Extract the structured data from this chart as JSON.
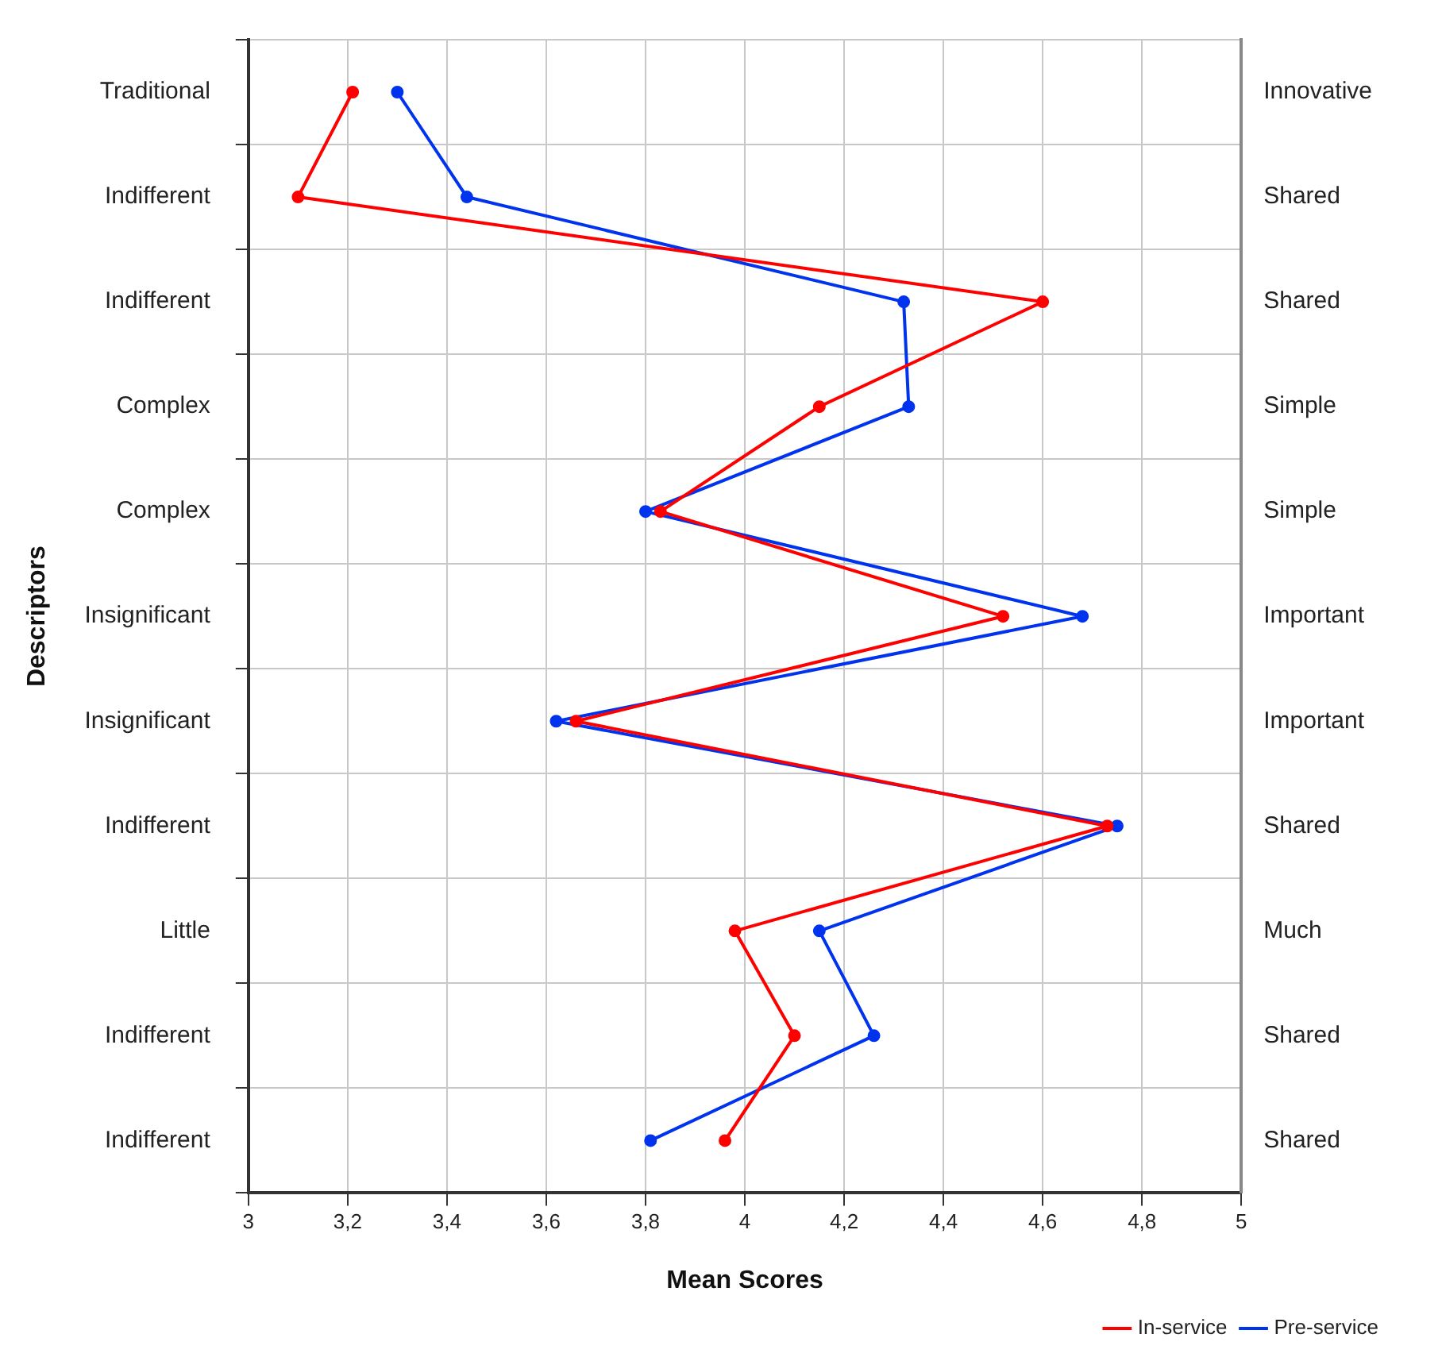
{
  "chart_data": {
    "type": "line",
    "orientation": "horizontal",
    "xlabel": "Mean Scores",
    "ylabel": "Descriptors",
    "categories": [
      "Traditional",
      "Indifferent",
      "Indifferent",
      "Complex",
      "Complex",
      "Insignificant",
      "Insignificant",
      "Indifferent",
      "Little",
      "Indifferent",
      "Indifferent"
    ],
    "y2_categories": [
      "Innovative",
      "Shared",
      "Shared",
      "Simple",
      "Simple",
      "Important",
      "Important",
      "Shared",
      "Much",
      "Shared",
      "Shared"
    ],
    "series": [
      {
        "name": "In-service",
        "color": "#ff0000",
        "values": [
          3.21,
          3.1,
          4.6,
          4.15,
          3.83,
          4.52,
          3.66,
          4.73,
          3.98,
          4.1,
          3.96
        ]
      },
      {
        "name": "Pre-service",
        "color": "#0033ee",
        "values": [
          3.3,
          3.44,
          4.32,
          4.33,
          3.8,
          4.68,
          3.62,
          4.75,
          4.15,
          4.26,
          3.81
        ]
      }
    ],
    "xlim": [
      3,
      5
    ],
    "xticks": [
      3,
      {
        "value": 3.2,
        "label": "3,2"
      },
      {
        "value": 3.4,
        "label": "3,4"
      },
      {
        "value": 3.6,
        "label": "3,6"
      },
      {
        "value": 3.8,
        "label": "3,8"
      },
      4,
      {
        "value": 4.2,
        "label": "4,2"
      },
      {
        "value": 4.4,
        "label": "4,4"
      },
      {
        "value": 4.6,
        "label": "4,6"
      },
      {
        "value": 4.8,
        "label": "4,8"
      },
      5
    ],
    "grid": true,
    "legend": "bottom right",
    "marker": "circle",
    "line_style": "solid"
  }
}
